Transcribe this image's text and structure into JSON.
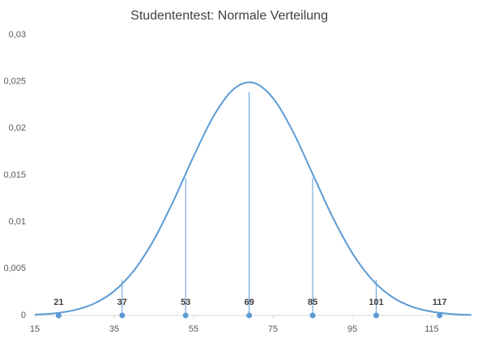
{
  "chart_data": {
    "type": "line",
    "title": "Studententest: Normale Verteilung",
    "xlim": [
      15,
      125
    ],
    "xticks": [
      15,
      35,
      55,
      75,
      95,
      115
    ],
    "ylim": [
      0,
      0.03
    ],
    "yticks": [
      0,
      {
        "value": 0.005,
        "label": "0,005"
      },
      {
        "value": 0.01,
        "label": "0,01"
      },
      {
        "value": 0.015,
        "label": "0,015"
      },
      {
        "value": 0.02,
        "label": "0,02"
      },
      {
        "value": 0.025,
        "label": "0,025"
      },
      {
        "value": 0.03,
        "label": "0,03"
      }
    ],
    "grid": false,
    "series": [
      {
        "color": "#5b9bd5",
        "style": "smooth",
        "x": [
          15,
          20,
          25,
          30,
          35,
          40,
          45,
          50,
          55,
          60,
          65,
          70,
          75,
          80,
          85,
          90,
          95,
          100,
          105,
          110,
          115,
          120,
          125
        ],
        "values": [
          8.37e-05,
          0.000229,
          0.000568,
          0.001278,
          0.002607,
          0.004824,
          0.008095,
          0.01232,
          0.017004,
          0.021286,
          0.024167,
          0.024885,
          0.023241,
          0.019686,
          0.015123,
          0.010537,
          0.006659,
          0.003816,
          0.001984,
          0.000935,
          0.0004,
          0.000155,
          5.46e-05
        ]
      },
      {
        "color": "#5b9bd5",
        "style": "drop",
        "x": [
          37,
          53,
          69,
          85,
          101
        ],
        "values": [
          0.0038,
          0.0147,
          0.0239,
          0.0147,
          0.0038
        ]
      },
      {
        "color": "#5b9bd5",
        "style": "markers",
        "x": [
          21,
          37,
          53,
          69,
          85,
          101,
          117
        ],
        "values": [
          0,
          0,
          0,
          0,
          0,
          0,
          0
        ]
      }
    ]
  }
}
